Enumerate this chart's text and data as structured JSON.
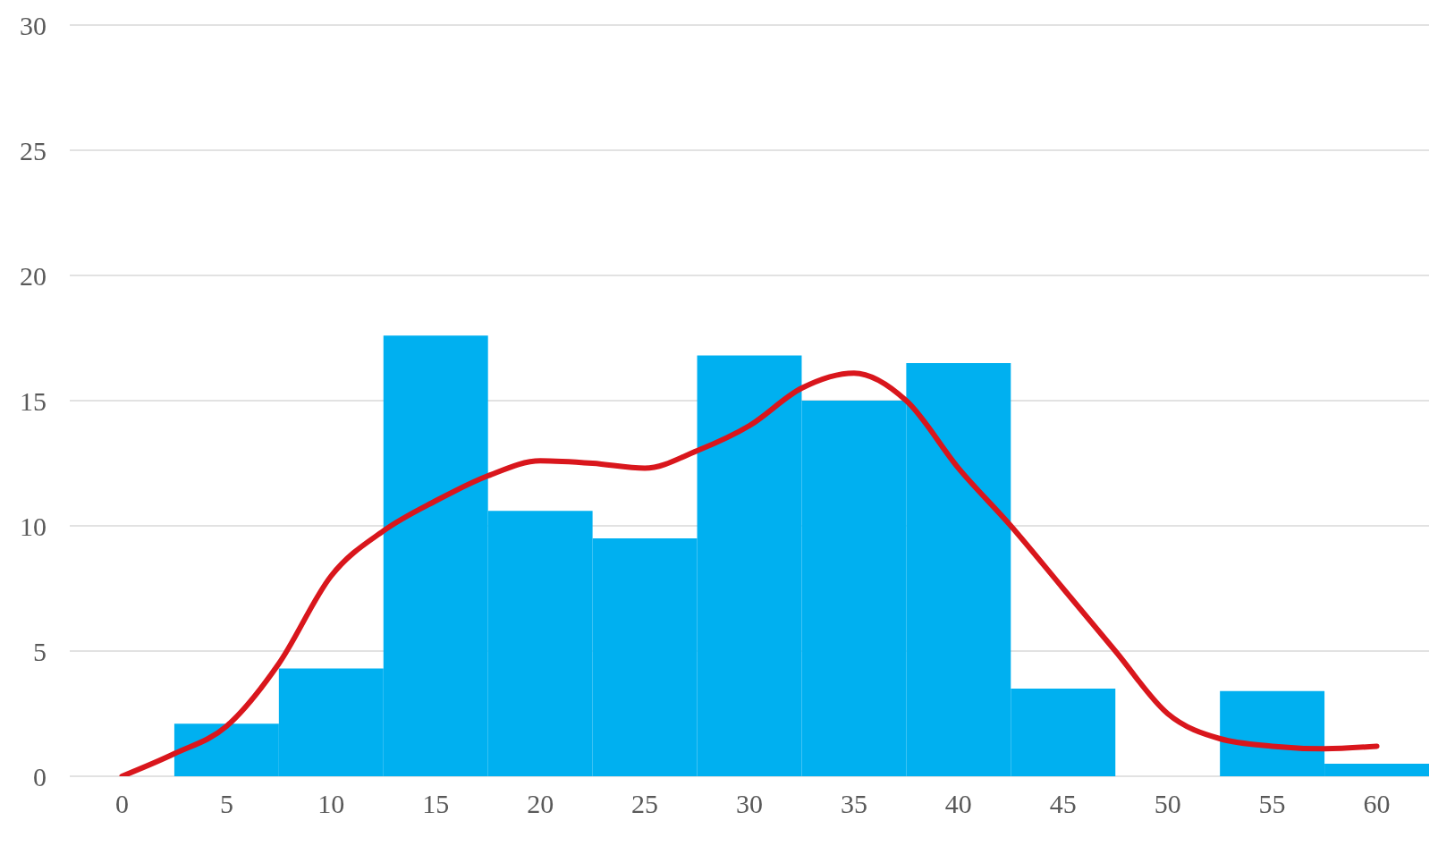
{
  "chart_data": {
    "type": "histogram",
    "bins": [
      2.5,
      7.5,
      12.5,
      17.5,
      22.5,
      27.5,
      32.5,
      37.5,
      42.5,
      47.5,
      52.5,
      57.5,
      62.5
    ],
    "values": [
      2.1,
      4.3,
      17.6,
      10.6,
      9.5,
      16.8,
      15.0,
      16.5,
      3.5,
      0,
      3.4,
      0.5
    ],
    "color": "#00b0f0",
    "series": [
      {
        "type": "line",
        "color": "#d9161c",
        "x": [
          0,
          2.5,
          5,
          7.5,
          10,
          12.5,
          15,
          17.5,
          20,
          22.5,
          25,
          27.5,
          30,
          32.5,
          35,
          37.5,
          40,
          42.5,
          45,
          47.5,
          50,
          52.5,
          55,
          57.5,
          60
        ],
        "values": [
          0,
          0.9,
          2,
          4.5,
          8,
          9.8,
          11,
          12,
          12.6,
          12.5,
          12.3,
          13,
          14,
          15.5,
          16.1,
          15,
          12.3,
          10,
          7.5,
          5,
          2.5,
          1.5,
          1.2,
          1.1,
          1.2
        ]
      }
    ],
    "xlim": [
      -2.5,
      62.5
    ],
    "xticks": [
      0,
      5,
      10,
      15,
      20,
      25,
      30,
      35,
      40,
      45,
      50,
      55,
      60
    ],
    "ylim": [
      0,
      30
    ],
    "yticks": [
      0,
      5,
      10,
      15,
      20,
      25,
      30
    ],
    "grid": "y",
    "marker": "none",
    "line_style": "solid"
  }
}
